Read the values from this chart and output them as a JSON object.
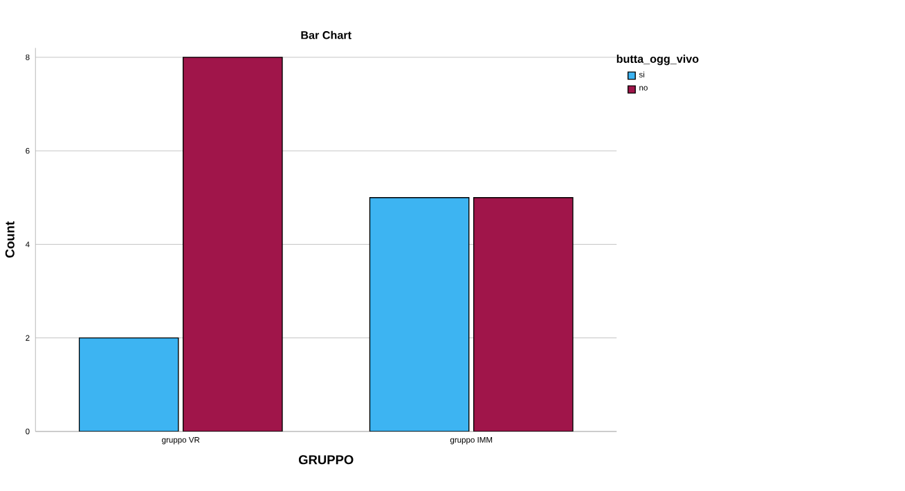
{
  "chart_data": {
    "type": "bar",
    "title": "Bar Chart",
    "xlabel": "GRUPPO",
    "ylabel": "Count",
    "legend_title": "butta_ogg_vivo",
    "categories": [
      "gruppo VR",
      "gruppo IMM"
    ],
    "series": [
      {
        "name": "si",
        "color": "#3db4f2",
        "values": [
          2,
          5
        ]
      },
      {
        "name": "no",
        "color": "#a0154a",
        "values": [
          8,
          5
        ]
      }
    ],
    "ylim": [
      0,
      8.2
    ],
    "yticks": [
      0,
      2,
      4,
      6,
      8
    ],
    "grid": "y",
    "legend": "top right"
  }
}
